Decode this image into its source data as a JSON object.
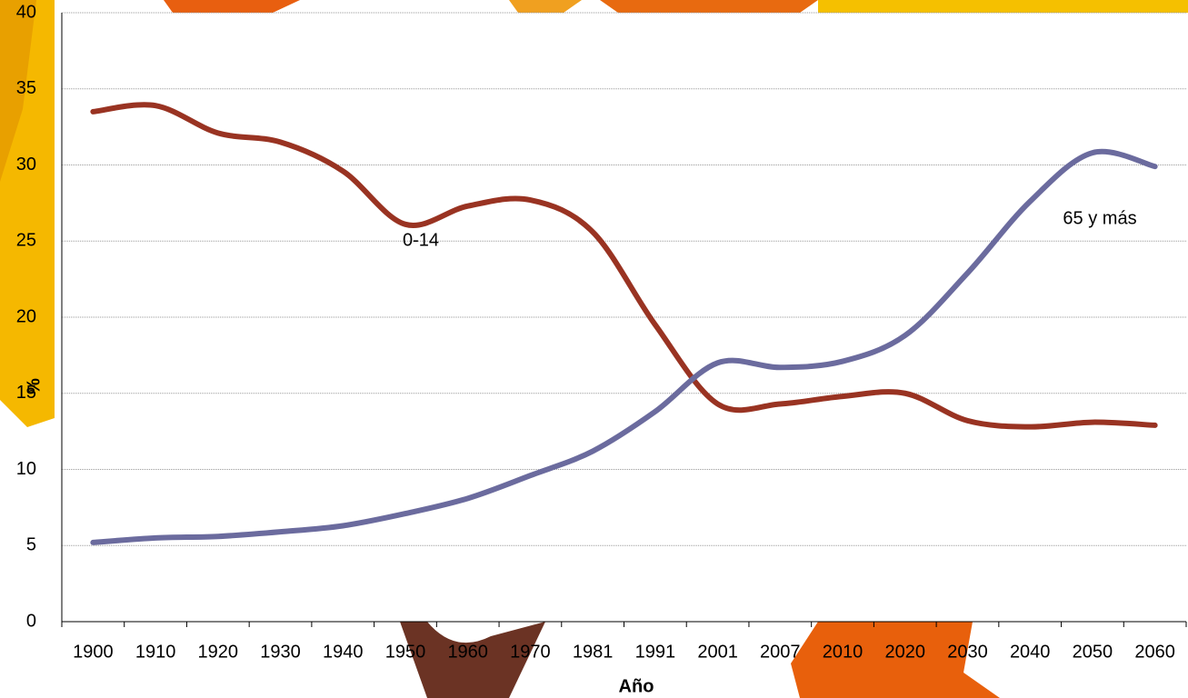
{
  "chart_data": {
    "type": "line",
    "x_label": "Año",
    "y_label": "%",
    "categories": [
      "1900",
      "1910",
      "1920",
      "1930",
      "1940",
      "1950",
      "1960",
      "1970",
      "1981",
      "1991",
      "2001",
      "2007",
      "2010",
      "2020",
      "2030",
      "2040",
      "2050",
      "2060"
    ],
    "series": [
      {
        "name": "0-14",
        "color": "#993322",
        "values": [
          33.5,
          33.9,
          32.1,
          31.5,
          29.6,
          26.1,
          27.3,
          27.7,
          25.6,
          19.5,
          14.3,
          14.3,
          14.8,
          15.0,
          13.2,
          12.8,
          13.1,
          12.9
        ]
      },
      {
        "name": "65 y más",
        "color": "#6b6b9e",
        "values": [
          5.2,
          5.5,
          5.6,
          5.9,
          6.3,
          7.1,
          8.1,
          9.6,
          11.2,
          13.8,
          17.0,
          16.7,
          17.1,
          18.8,
          22.9,
          27.6,
          30.8,
          29.9
        ]
      }
    ],
    "ylim": [
      0,
      40
    ],
    "yticks": [
      0,
      5,
      10,
      15,
      20,
      25,
      30,
      35,
      40
    ],
    "grid": true
  }
}
